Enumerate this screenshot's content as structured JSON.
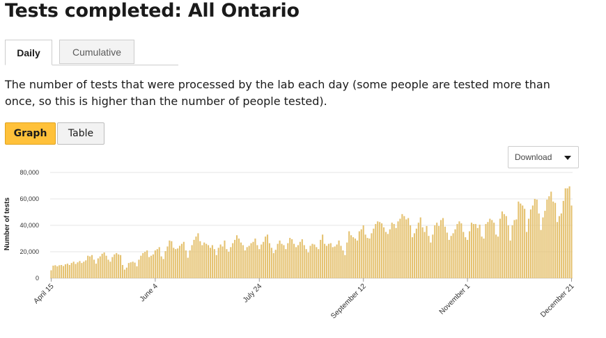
{
  "page": {
    "title": "Tests completed: All Ontario",
    "description": "The number of tests that were processed by the lab each day (some people are tested more than once, so this is higher than the number of people tested)."
  },
  "tabs": [
    {
      "label": "Daily",
      "active": true
    },
    {
      "label": "Cumulative",
      "active": false
    }
  ],
  "view_toggle": {
    "graph_label": "Graph",
    "table_label": "Table",
    "active": "Graph"
  },
  "download": {
    "label": "Download"
  },
  "colors": {
    "bar": "#e5c271",
    "accent": "#ffc13a",
    "grid": "#e6e6e6"
  },
  "chart_data": {
    "type": "bar",
    "ylabel": "Number of tests",
    "xlabel": "",
    "ylim": [
      0,
      80000
    ],
    "yticks": [
      0,
      20000,
      40000,
      60000,
      80000
    ],
    "ytick_labels": [
      "0",
      "20,000",
      "40,000",
      "60,000",
      "80,000"
    ],
    "xtick_labels": [
      "April 15",
      "June 4",
      "July 24",
      "September 12",
      "November 1",
      "December 21"
    ],
    "grid": true,
    "series": [
      {
        "values": [
          6000,
          9500,
          9800,
          9000,
          9800,
          10000,
          9200,
          10500,
          11000,
          10000,
          11500,
          12500,
          10800,
          12000,
          13000,
          11500,
          12500,
          13500,
          17000,
          16500,
          17500,
          14000,
          11000,
          15000,
          16500,
          18500,
          19500,
          17000,
          14000,
          12500,
          16000,
          18000,
          19000,
          18000,
          17500,
          10000,
          6500,
          8000,
          11500,
          12000,
          12500,
          11800,
          9000,
          14000,
          17000,
          19000,
          20000,
          21000,
          16000,
          17000,
          18000,
          21000,
          22000,
          23500,
          16500,
          14500,
          20500,
          24000,
          28500,
          28000,
          23000,
          22000,
          22500,
          24500,
          26000,
          27500,
          21000,
          15500,
          21000,
          25000,
          29000,
          31500,
          34000,
          28000,
          25000,
          27000,
          26000,
          25000,
          23000,
          25000,
          22000,
          17500,
          23000,
          25500,
          24000,
          28500,
          22000,
          20000,
          23500,
          26500,
          29000,
          32500,
          30000,
          27000,
          25000,
          21000,
          23500,
          24500,
          26500,
          27500,
          30000,
          25000,
          22000,
          25500,
          27500,
          31500,
          33000,
          26500,
          23000,
          19000,
          21500,
          26000,
          28500,
          26000,
          25000,
          22000,
          26500,
          30500,
          29500,
          26000,
          23500,
          25000,
          27500,
          29500,
          25000,
          22000,
          19500,
          24500,
          26000,
          25500,
          23500,
          22000,
          29000,
          33000,
          26000,
          24500,
          26000,
          26500,
          23500,
          24000,
          25500,
          28500,
          24500,
          21000,
          17500,
          27000,
          35500,
          32500,
          31000,
          30000,
          28500,
          35500,
          37000,
          40000,
          33000,
          30500,
          30000,
          34000,
          37500,
          41000,
          43000,
          42500,
          41500,
          38500,
          35000,
          33500,
          37000,
          42000,
          41000,
          38000,
          43000,
          45000,
          48500,
          47000,
          44500,
          45500,
          40000,
          31000,
          34000,
          37500,
          42000,
          46000,
          38500,
          35000,
          39500,
          32000,
          27000,
          33000,
          40000,
          42000,
          39500,
          44000,
          45500,
          39000,
          34500,
          29000,
          32000,
          34000,
          37000,
          41000,
          43000,
          41500,
          35000,
          31000,
          29000,
          35500,
          42000,
          41000,
          41000,
          38000,
          40500,
          31500,
          30000,
          41000,
          42500,
          45000,
          44000,
          42000,
          33000,
          31500,
          45000,
          50500,
          48500,
          47000,
          40000,
          28500,
          40000,
          44000,
          44500,
          58000,
          56500,
          55000,
          52500,
          35000,
          45000,
          52000,
          55000,
          60000,
          59500,
          49000,
          36500,
          46000,
          51000,
          59500,
          62000,
          65500,
          58000,
          57000,
          42500,
          47000,
          49000,
          58500,
          68000,
          68000,
          69500,
          55000
        ]
      }
    ]
  }
}
